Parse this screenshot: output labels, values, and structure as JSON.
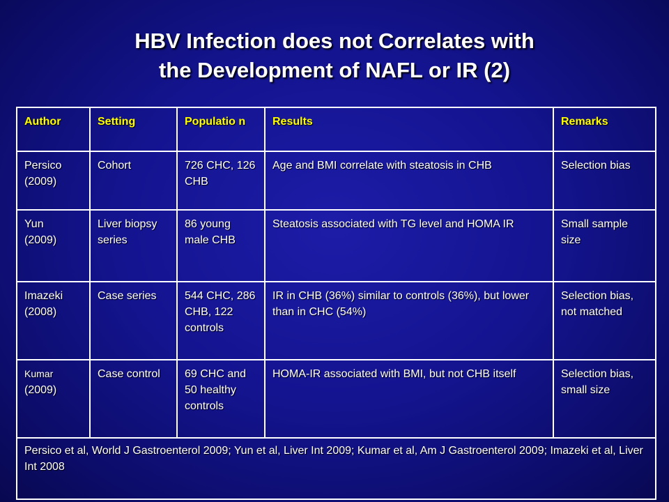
{
  "slide": {
    "title_line1": "HBV Infection does not Correlates with",
    "title_line2": "the Development of NAFL or IR (2)"
  },
  "table": {
    "headers": [
      "Author",
      "Setting",
      "Populatio n",
      "Results",
      "Remarks"
    ],
    "rows": [
      {
        "author_name": "Persico",
        "author_year": "(2009)",
        "setting": "Cohort",
        "population": "726 CHC, 126 CHB",
        "results": "Age and BMI correlate with steatosis in CHB",
        "remarks": "Selection bias"
      },
      {
        "author_name": "Yun",
        "author_year": "(2009)",
        "setting": "Liver biopsy series",
        "population": "86 young male CHB",
        "results": "Steatosis associated with TG level and HOMA IR",
        "remarks": "Small sample size"
      },
      {
        "author_name": "Imazeki",
        "author_year": "(2008)",
        "setting": "Case series",
        "population": "544 CHC, 286 CHB, 122 controls",
        "results": "IR in CHB (36%) similar to controls (36%), but lower than in CHC (54%)",
        "remarks": "Selection bias, not matched"
      },
      {
        "author_name": "Kumar",
        "author_year": "(2009)",
        "setting": "Case control",
        "population": "69 CHC and 50 healthy controls",
        "results": "HOMA-IR associated with BMI, but not CHB itself",
        "remarks": "Selection bias, small size"
      }
    ],
    "footnote": "Persico et al, World J Gastroenterol 2009;  Yun et al, Liver Int 2009; Kumar et al, Am J Gastroenterol 2009; Imazeki et al, Liver Int 2008"
  }
}
